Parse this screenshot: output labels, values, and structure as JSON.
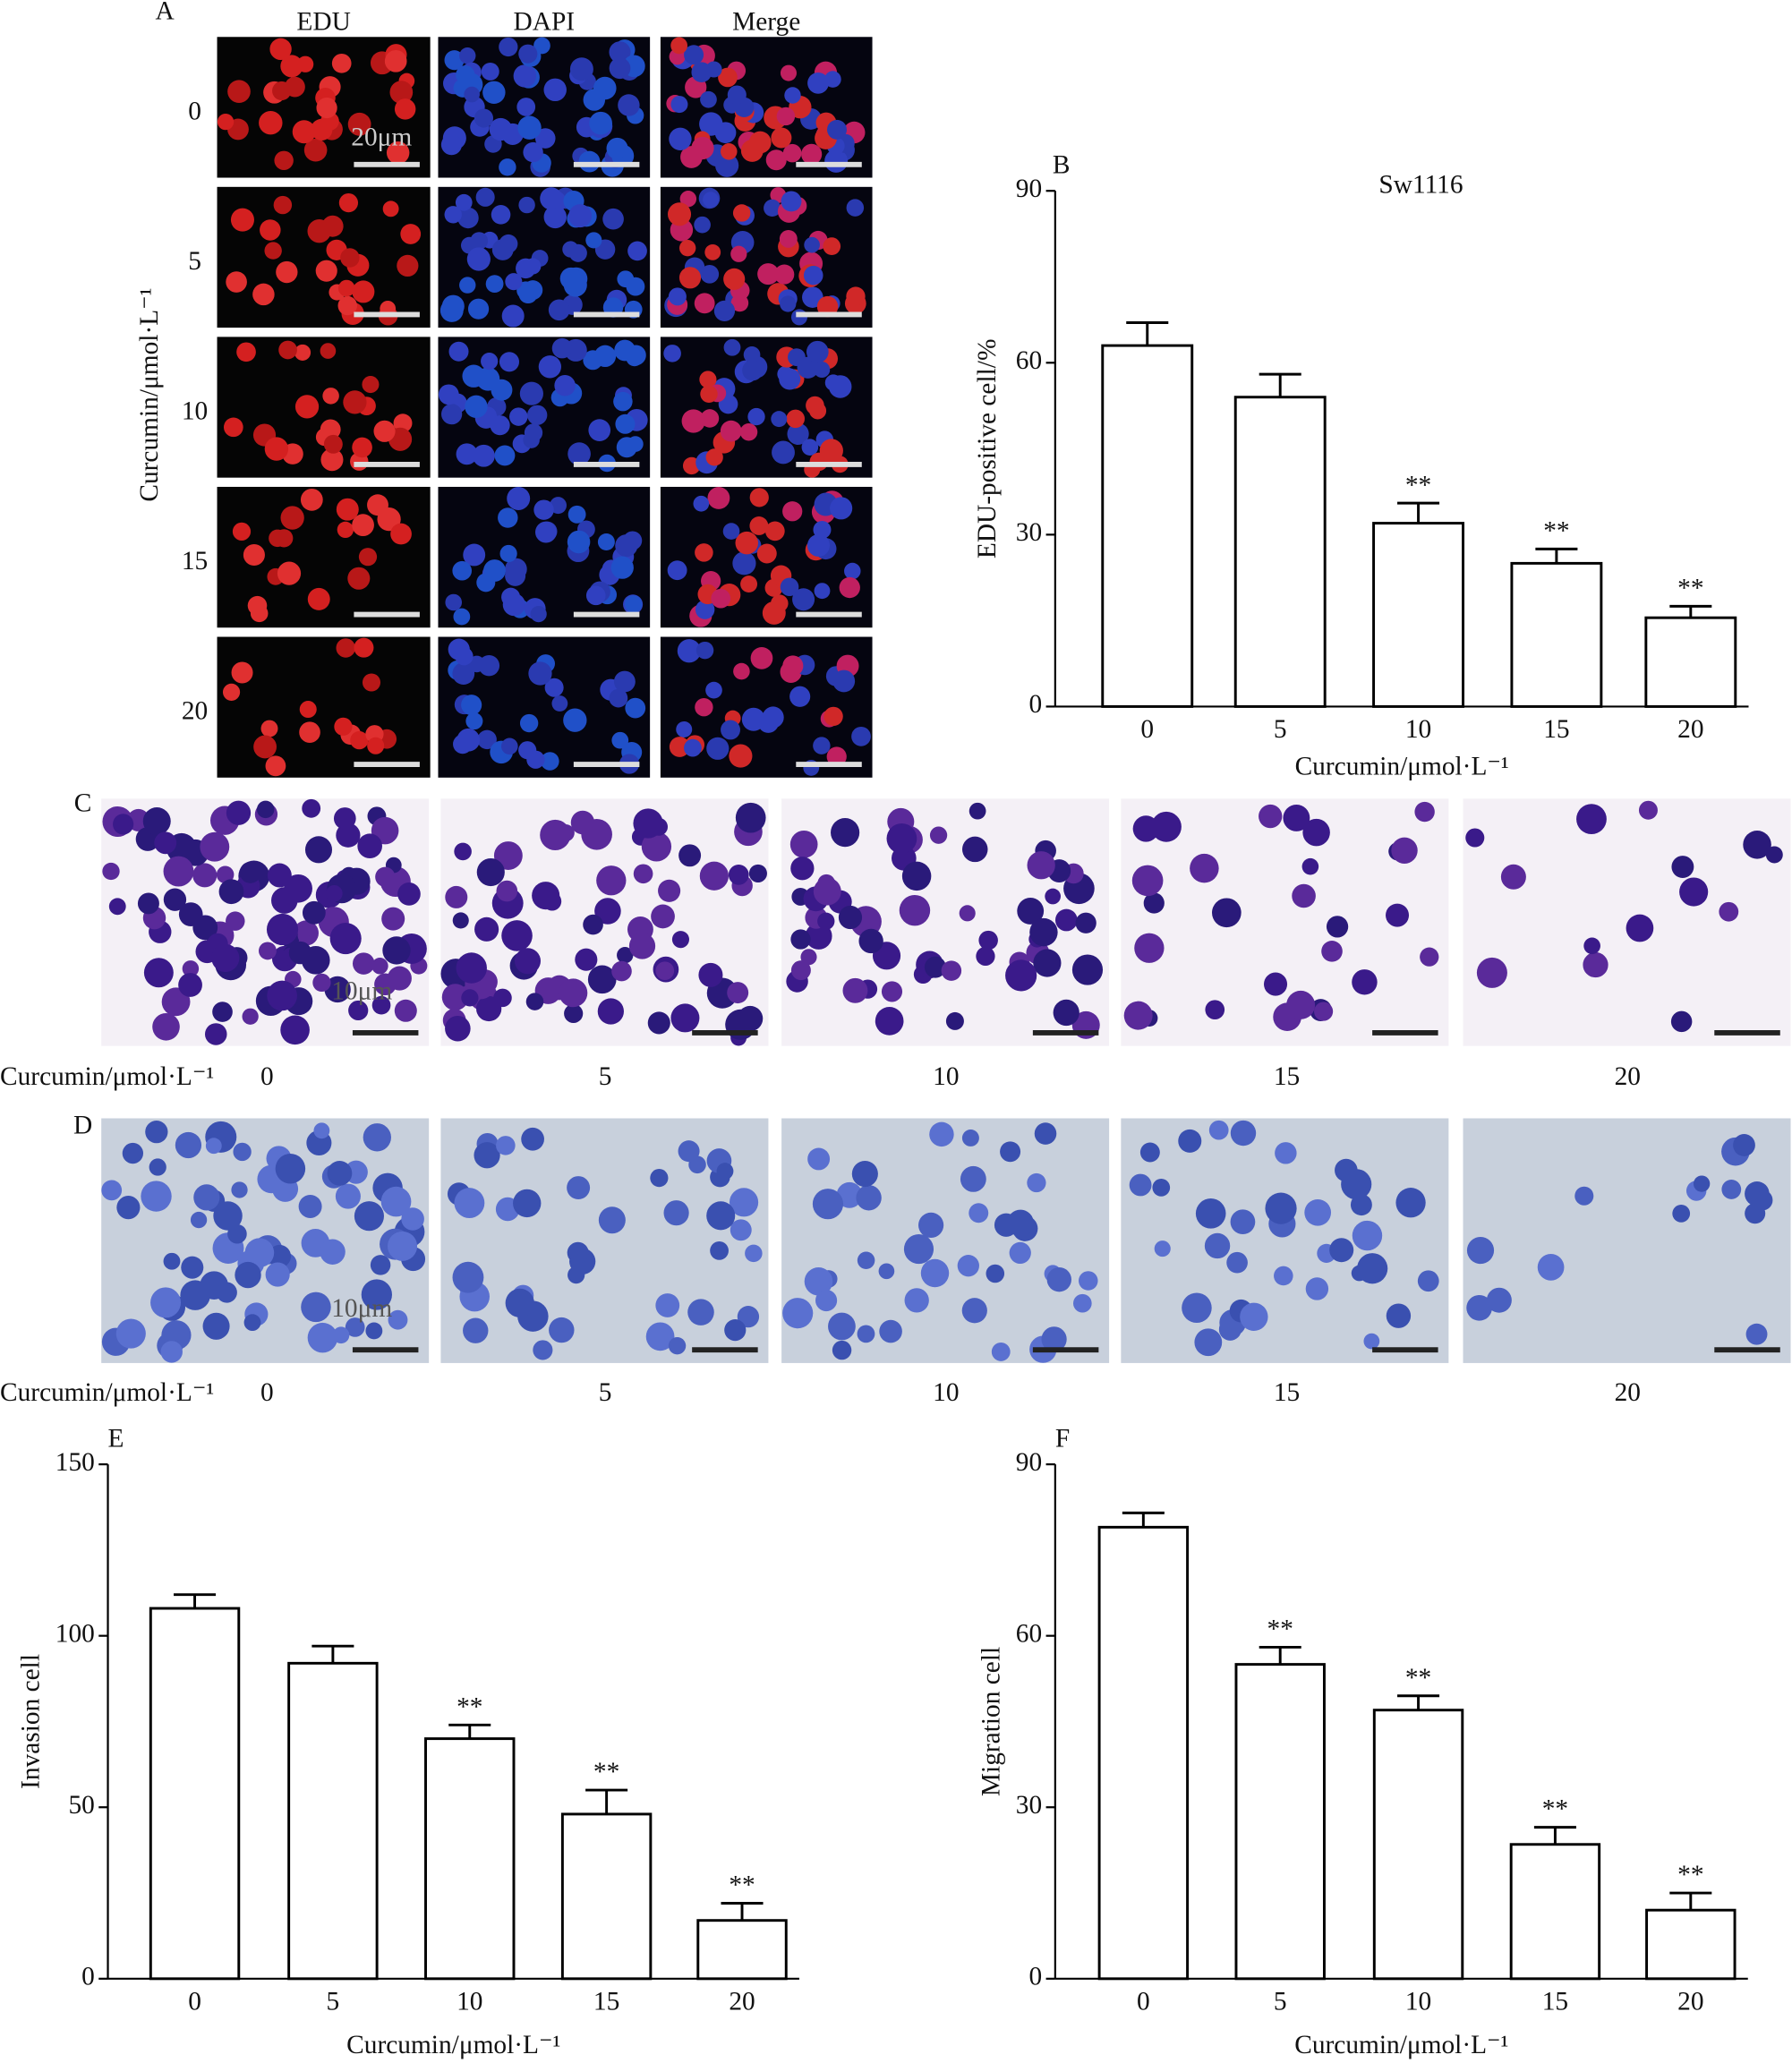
{
  "panels": {
    "A": {
      "label": "A",
      "columns": [
        "EDU",
        "DAPI",
        "Merge"
      ],
      "rows": [
        "0",
        "5",
        "10",
        "15",
        "20"
      ],
      "row_axis": "Curcumin/μmol·L⁻¹",
      "scale": "20μm"
    },
    "C": {
      "label": "C",
      "axis": "Curcumin/μmol·L⁻¹",
      "columns": [
        "0",
        "5",
        "10",
        "15",
        "20"
      ],
      "scale": "10μm"
    },
    "D": {
      "label": "D",
      "axis": "Curcumin/μmol·L⁻¹",
      "columns": [
        "0",
        "5",
        "10",
        "15",
        "20"
      ],
      "scale": "10μm"
    }
  },
  "chart_data": [
    {
      "type": "bar",
      "panel": "B",
      "title": "Sw1116",
      "ylabel": "EDU-positive cell/%",
      "xlabel": "Curcumin/μmol·L⁻¹",
      "categories": [
        "0",
        "5",
        "10",
        "15",
        "20"
      ],
      "values": [
        63,
        54,
        32,
        25,
        15.5
      ],
      "errors": [
        4,
        4,
        3.5,
        2.5,
        2
      ],
      "annotations": [
        null,
        null,
        "**",
        "**",
        "**"
      ],
      "color": "#ffffff",
      "ylim": [
        0,
        90
      ],
      "yticks": [
        0,
        30,
        60,
        90
      ]
    },
    {
      "type": "bar",
      "panel": "E",
      "ylabel": "Invasion cell",
      "xlabel": "Curcumin/μmol·L⁻¹",
      "categories": [
        "0",
        "5",
        "10",
        "15",
        "20"
      ],
      "values": [
        108,
        92,
        70,
        48,
        17
      ],
      "errors": [
        4,
        5,
        4,
        7,
        5
      ],
      "annotations": [
        null,
        null,
        "**",
        "**",
        "**"
      ],
      "color": "#ffffff",
      "ylim": [
        0,
        150
      ],
      "yticks": [
        0,
        50,
        100,
        150
      ]
    },
    {
      "type": "bar",
      "panel": "F",
      "ylabel": "Migration cell",
      "xlabel": "Curcumin/μmol·L⁻¹",
      "categories": [
        "0",
        "5",
        "10",
        "15",
        "20"
      ],
      "values": [
        79,
        55,
        47,
        23.5,
        12
      ],
      "errors": [
        2.5,
        3,
        2.5,
        3,
        3
      ],
      "annotations": [
        null,
        "**",
        "**",
        "**",
        "**"
      ],
      "color": "#ffffff",
      "ylim": [
        0,
        90
      ],
      "yticks": [
        0,
        30,
        60,
        90
      ]
    }
  ]
}
